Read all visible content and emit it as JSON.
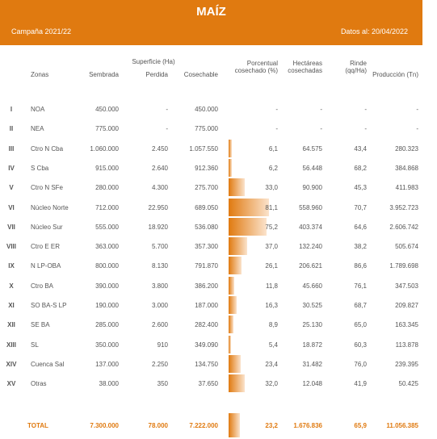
{
  "header": {
    "title": "MAÍZ",
    "campaign": "Campaña 2021/22",
    "date": "Datos al: 20/04/2022"
  },
  "table": {
    "group_header": "Superficie (Ha)",
    "columns": [
      "Zonas",
      "Sembrada",
      "Perdida",
      "Cosechable",
      "Porcentual\ncosechado (%)",
      "Hectáreas\ncosechadas",
      "Rinde\n(qq/Ha)",
      "Producción (Tn)"
    ],
    "rows": [
      [
        "I",
        "NOA",
        "450.000",
        "-",
        "450.000",
        "-",
        "-",
        "-",
        "-"
      ],
      [
        "II",
        "NEA",
        "775.000",
        "-",
        "775.000",
        "-",
        "-",
        "-",
        "-"
      ],
      [
        "III",
        "Ctro N Cba",
        "1.060.000",
        "2.450",
        "1.057.550",
        "6,1",
        "64.575",
        "43,4",
        "280.323"
      ],
      [
        "IV",
        "S Cba",
        "915.000",
        "2.640",
        "912.360",
        "6,2",
        "56.448",
        "68,2",
        "384.868"
      ],
      [
        "V",
        "Ctro N SFe",
        "280.000",
        "4.300",
        "275.700",
        "33,0",
        "90.900",
        "45,3",
        "411.983"
      ],
      [
        "VI",
        "Núcleo Norte",
        "712.000",
        "22.950",
        "689.050",
        "81,1",
        "558.960",
        "70,7",
        "3.952.723"
      ],
      [
        "VII",
        "Núcleo Sur",
        "555.000",
        "18.920",
        "536.080",
        "75,2",
        "403.374",
        "64,6",
        "2.606.742"
      ],
      [
        "VIII",
        "Ctro E ER",
        "363.000",
        "5.700",
        "357.300",
        "37,0",
        "132.240",
        "38,2",
        "505.674"
      ],
      [
        "IX",
        "N LP-OBA",
        "800.000",
        "8.130",
        "791.870",
        "26,1",
        "206.621",
        "86,6",
        "1.789.698"
      ],
      [
        "X",
        "Ctro BA",
        "390.000",
        "3.800",
        "386.200",
        "11,8",
        "45.660",
        "76,1",
        "347.503"
      ],
      [
        "XI",
        "SO BA-S LP",
        "190.000",
        "3.000",
        "187.000",
        "16,3",
        "30.525",
        "68,7",
        "209.827"
      ],
      [
        "XII",
        "SE BA",
        "285.000",
        "2.600",
        "282.400",
        "8,9",
        "25.130",
        "65,0",
        "163.345"
      ],
      [
        "XIII",
        "SL",
        "350.000",
        "910",
        "349.090",
        "5,4",
        "18.872",
        "60,3",
        "113.878"
      ],
      [
        "XIV",
        "Cuenca Sal",
        "137.000",
        "2.250",
        "134.750",
        "23,4",
        "31.482",
        "76,0",
        "239.395"
      ],
      [
        "XV",
        "Otras",
        "38.000",
        "350",
        "37.650",
        "32,0",
        "12.048",
        "41,9",
        "50.425"
      ]
    ],
    "total": [
      "TOTAL",
      "7.300.000",
      "78.000",
      "7.222.000",
      "23,2",
      "1.676.836",
      "65,9",
      "11.056.385"
    ]
  }
}
